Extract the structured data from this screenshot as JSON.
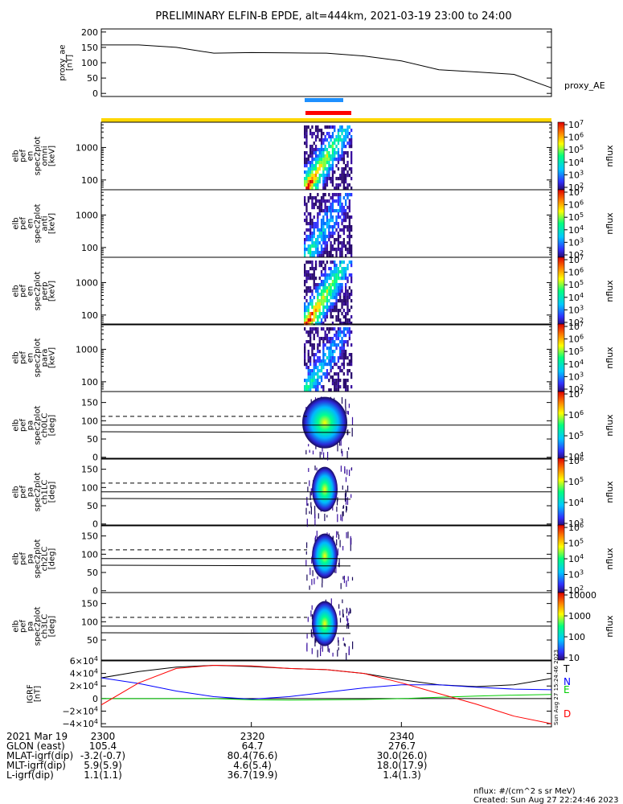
{
  "title": "PRELIMINARY ELFIN-B EPDE, alt=444km, 2021-03-19 23:00 to 24:00",
  "chart_data": [
    {
      "type": "line",
      "panel": "proxy_ae",
      "ylabel": [
        "proxy_ae",
        "[nT]"
      ],
      "series_label": "proxy_AE",
      "ylim": [
        -10,
        210
      ],
      "yticks": [
        "0",
        "50",
        "100",
        "150",
        "200"
      ],
      "x_minutes": [
        0,
        5,
        10,
        15,
        20,
        25,
        30,
        35,
        40,
        45,
        50,
        55,
        60
      ],
      "values": [
        158,
        158,
        150,
        131,
        133,
        132,
        131,
        122,
        106,
        77,
        70,
        62,
        18
      ]
    },
    {
      "type": "heatmap",
      "panel": "omni",
      "ylabel": [
        "elb",
        "pef",
        "en",
        "spec2plot",
        "omni",
        "[keV]"
      ],
      "yticks": [
        "100",
        "1000"
      ],
      "colorbar": {
        "label": "nflux",
        "ticks": [
          "10^2",
          "10^3",
          "10^4",
          "10^5",
          "10^6",
          "10^7"
        ]
      }
    },
    {
      "type": "heatmap",
      "panel": "anti",
      "ylabel": [
        "elb",
        "pef",
        "en",
        "spec2plot",
        "anti",
        "[keV]"
      ],
      "yticks": [
        "100",
        "1000"
      ],
      "colorbar": {
        "label": "nflux",
        "ticks": [
          "10^2",
          "10^3",
          "10^4",
          "10^5",
          "10^6",
          "10^7"
        ]
      }
    },
    {
      "type": "heatmap",
      "panel": "perp",
      "ylabel": [
        "elb",
        "pef",
        "en",
        "spec2plot",
        "perp",
        "[keV]"
      ],
      "yticks": [
        "100",
        "1000"
      ],
      "colorbar": {
        "label": "nflux",
        "ticks": [
          "10^2",
          "10^3",
          "10^4",
          "10^5",
          "10^6",
          "10^7"
        ]
      }
    },
    {
      "type": "heatmap",
      "panel": "para",
      "ylabel": [
        "elb",
        "pef",
        "en",
        "spec2plot",
        "para",
        "[keV]"
      ],
      "yticks": [
        "100",
        "1000"
      ],
      "colorbar": {
        "label": "nflux",
        "ticks": [
          "10^2",
          "10^3",
          "10^4",
          "10^5",
          "10^6",
          "10^7"
        ]
      }
    },
    {
      "type": "heatmap",
      "panel": "ch0LC",
      "ylabel": [
        "elb",
        "pef",
        "pa",
        "spec2plot",
        "ch0LC",
        "[deg]"
      ],
      "yticks": [
        "0",
        "50",
        "100",
        "150"
      ],
      "colorbar": {
        "label": "nflux",
        "ticks": [
          "10^4",
          "10^5",
          "10^6",
          "10^7"
        ]
      }
    },
    {
      "type": "heatmap",
      "panel": "ch1LC",
      "ylabel": [
        "elb",
        "pef",
        "pa",
        "spec2plot",
        "ch1LC",
        "[deg]"
      ],
      "yticks": [
        "0",
        "50",
        "100",
        "150"
      ],
      "colorbar": {
        "label": "nflux",
        "ticks": [
          "10^3",
          "10^4",
          "10^5",
          "10^6"
        ]
      }
    },
    {
      "type": "heatmap",
      "panel": "ch2LC",
      "ylabel": [
        "elb",
        "pef",
        "pa",
        "spec2plot",
        "ch2LC",
        "[deg]"
      ],
      "yticks": [
        "0",
        "50",
        "100",
        "150"
      ],
      "colorbar": {
        "label": "nflux",
        "ticks": [
          "10^2",
          "10^3",
          "10^4",
          "10^5",
          "10^6"
        ]
      }
    },
    {
      "type": "heatmap",
      "panel": "ch3LC",
      "ylabel": [
        "elb",
        "pef",
        "pa",
        "spec2plot",
        "ch3LC",
        "[deg]"
      ],
      "yticks": [
        "50",
        "100",
        "150"
      ],
      "colorbar": {
        "label": "nflux",
        "ticks": [
          "10",
          "100",
          "1000",
          "10000"
        ]
      }
    },
    {
      "type": "line",
      "panel": "IGRF",
      "ylabel": [
        "IGRF",
        "[nT]"
      ],
      "ylim": [
        -45000,
        60000
      ],
      "yticks": [
        "6×10^4",
        "4×10^4",
        "2×10^4",
        "0",
        "−2×10^4",
        "−4×10^4"
      ],
      "x_minutes": [
        0,
        5,
        10,
        15,
        20,
        25,
        30,
        35,
        40,
        45,
        50,
        55,
        60
      ],
      "series": [
        {
          "name": "T",
          "color": "#000000",
          "values": [
            33000,
            43000,
            50000,
            53000,
            51000,
            48000,
            46000,
            40000,
            30000,
            22000,
            19000,
            22000,
            32000
          ]
        },
        {
          "name": "N",
          "color": "#0000ff",
          "values": [
            33000,
            24000,
            12000,
            3000,
            -1000,
            3000,
            10000,
            17000,
            22000,
            22000,
            18000,
            15000,
            14000
          ]
        },
        {
          "name": "E",
          "color": "#00cc00",
          "values": [
            0,
            0,
            0,
            0,
            -2000,
            -2500,
            -2000,
            -1500,
            0,
            2000,
            4000,
            5500,
            6500
          ]
        },
        {
          "name": "D",
          "color": "#ff0000",
          "values": [
            -10000,
            25000,
            48000,
            53000,
            52000,
            48000,
            46000,
            40000,
            25000,
            8000,
            -9000,
            -28000,
            -40000
          ]
        }
      ]
    }
  ],
  "timestamp_side": "Sun Aug 27 15:24:46 2023",
  "footer": {
    "rows": [
      {
        "label": "2021 Mar 19",
        "v1": "2300",
        "v2": "2320",
        "v3": "2340"
      },
      {
        "label": "GLON (east)",
        "v1": "105.4",
        "v2": "64.7",
        "v3": "276.7"
      },
      {
        "label": "MLAT-igrf(dip)",
        "v1": "-3.2(-0.7)",
        "v2": "80.4(76.6)",
        "v3": "30.0(26.0)"
      },
      {
        "label": "MLT-igrf(dip)",
        "v1": "5.9(5.9)",
        "v2": "4.6(5.4)",
        "v3": "18.0(17.9)"
      },
      {
        "label": "L-igrf(dip)",
        "v1": "1.1(1.1)",
        "v2": "36.7(19.9)",
        "v3": "1.4(1.3)"
      }
    ],
    "units_note": "nflux: #/(cm^2 s sr MeV)",
    "created": "Created: Sun Aug 27 22:24:46 2023"
  }
}
